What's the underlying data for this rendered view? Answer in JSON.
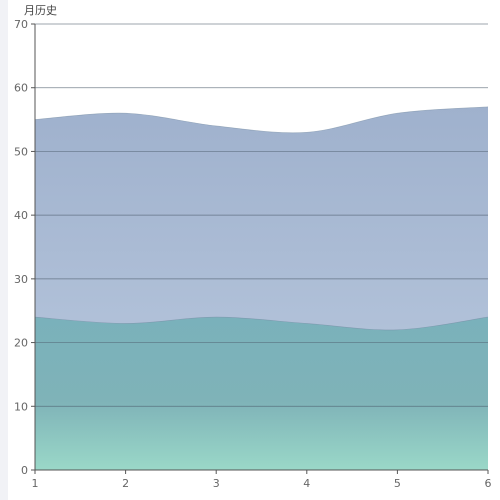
{
  "chart_data": {
    "type": "area",
    "ylabel": "月历史",
    "x": [
      1,
      2,
      3,
      4,
      5,
      6
    ],
    "xlim": [
      1,
      6
    ],
    "ylim": [
      0,
      70
    ],
    "yticks": [
      0,
      10,
      20,
      30,
      40,
      50,
      60,
      70
    ],
    "grid": true,
    "smooth": true,
    "series": [
      {
        "values": [
          55,
          56,
          54,
          53,
          56,
          57
        ],
        "color": "#9fb1cd"
      },
      {
        "values": [
          24,
          23,
          24,
          23,
          22,
          24
        ],
        "color": "#7ab1bb"
      }
    ]
  }
}
